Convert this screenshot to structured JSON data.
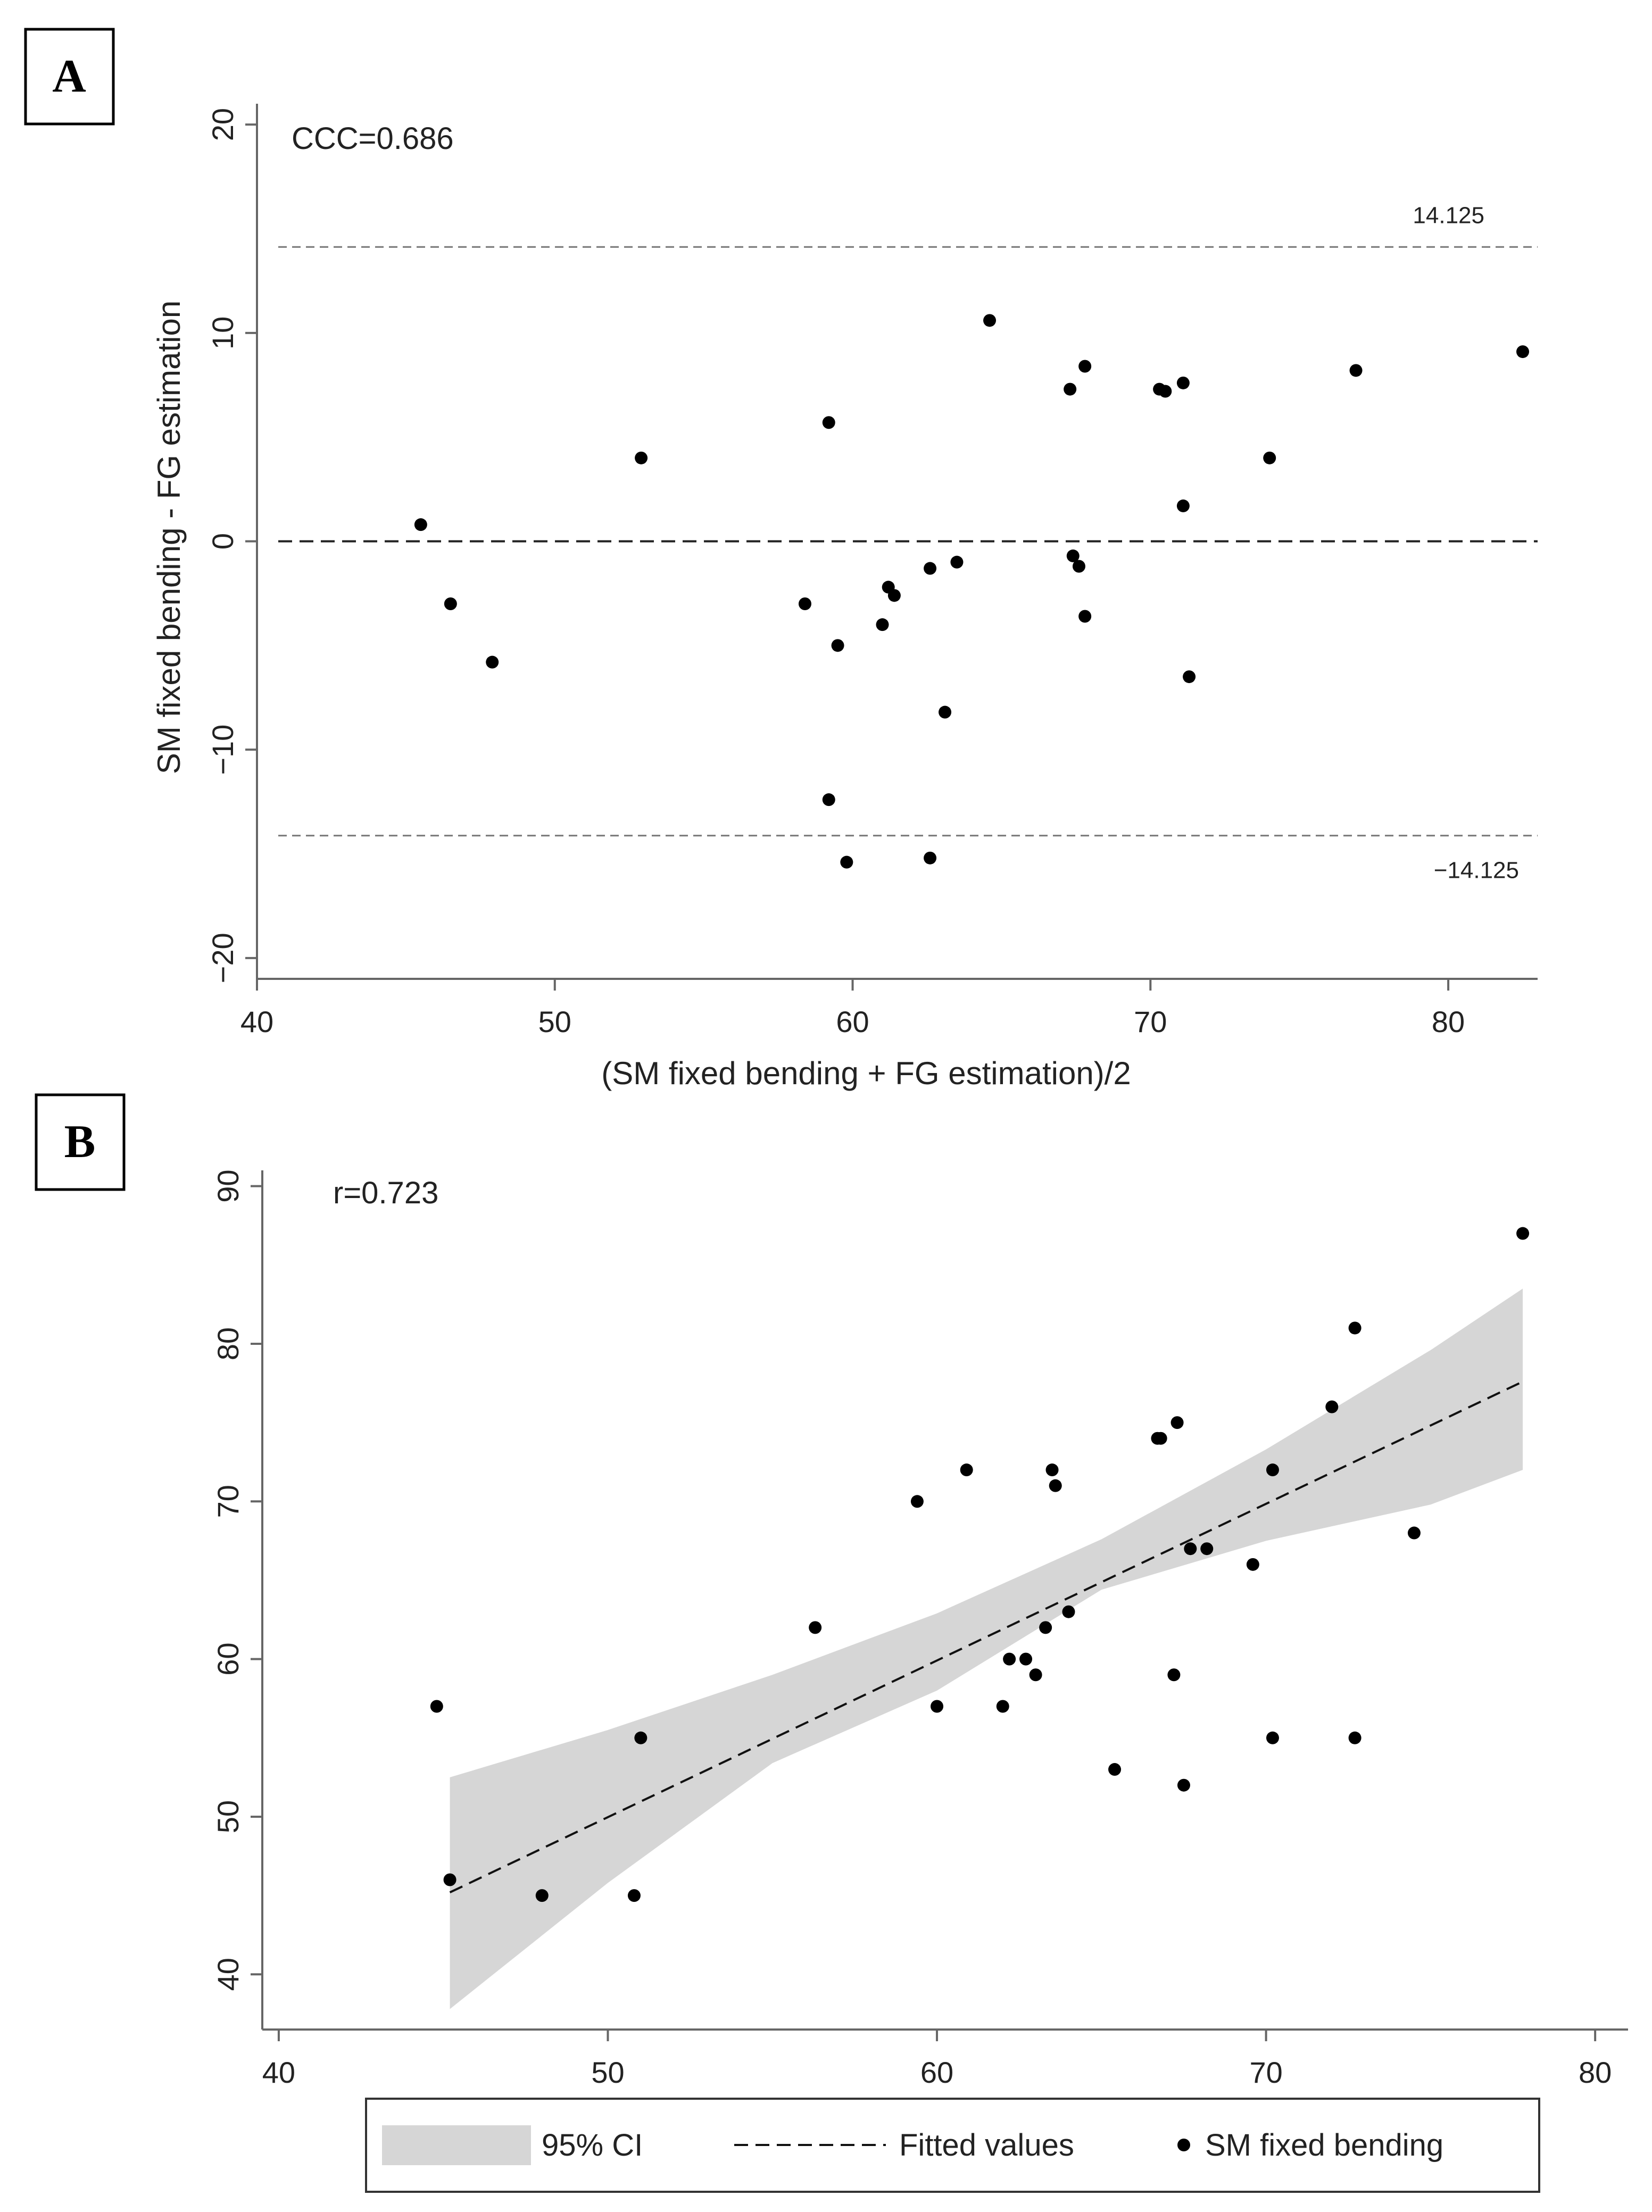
{
  "chart_data": [
    {
      "type": "scatter",
      "panel_label": "A",
      "title": "",
      "annotation": "CCC=0.686",
      "xlabel": "(SM fixed bending + FG estimation)/2",
      "ylabel": "SM fixed bending - FG estimation",
      "xlim": [
        40,
        83
      ],
      "ylim": [
        -21,
        21
      ],
      "x_ticks": [
        40,
        50,
        60,
        70,
        80
      ],
      "y_ticks": [
        20,
        10,
        0,
        -10,
        -20
      ],
      "y_tick_labels": [
        "20",
        "10",
        "0",
        "−10",
        "−20"
      ],
      "grid": false,
      "reference_lines": [
        {
          "name": "upper-limit",
          "y": 14.125,
          "label": "14.125",
          "style": "dashed-thin"
        },
        {
          "name": "mean-difference",
          "y": 0,
          "label": "",
          "style": "dashed"
        },
        {
          "name": "lower-limit",
          "y": -14.125,
          "label": "−14.125",
          "style": "dashed-thin"
        }
      ],
      "series": [
        {
          "name": "differences",
          "points": [
            [
              45.5,
              0.8
            ],
            [
              46.5,
              -3.0
            ],
            [
              47.9,
              -5.8
            ],
            [
              52.9,
              4.0
            ],
            [
              58.4,
              -3.0
            ],
            [
              59.2,
              5.7
            ],
            [
              59.2,
              -12.4
            ],
            [
              59.5,
              -5.0
            ],
            [
              59.8,
              -15.4
            ],
            [
              61.0,
              -4.0
            ],
            [
              61.2,
              -2.2
            ],
            [
              61.4,
              -2.6
            ],
            [
              62.6,
              -1.3
            ],
            [
              62.6,
              -15.2
            ],
            [
              63.1,
              -8.2
            ],
            [
              63.5,
              -1.0
            ],
            [
              64.6,
              10.6
            ],
            [
              67.3,
              7.3
            ],
            [
              67.4,
              -0.7
            ],
            [
              67.6,
              -1.2
            ],
            [
              67.8,
              8.4
            ],
            [
              67.8,
              -3.6
            ],
            [
              70.3,
              7.3
            ],
            [
              70.5,
              7.2
            ],
            [
              71.1,
              7.6
            ],
            [
              71.1,
              1.7
            ],
            [
              71.3,
              -6.5
            ],
            [
              74.0,
              4.0
            ],
            [
              76.9,
              8.2
            ],
            [
              82.5,
              9.1
            ]
          ]
        }
      ]
    },
    {
      "type": "scatter",
      "panel_label": "B",
      "title": "",
      "annotation": "r=0.723",
      "xlabel": "",
      "ylabel": "",
      "xlim": [
        39.5,
        81
      ],
      "ylim": [
        36.5,
        91
      ],
      "x_ticks": [
        40,
        50,
        60,
        70,
        80
      ],
      "y_ticks": [
        90,
        80,
        70,
        60,
        50,
        40
      ],
      "grid": false,
      "legend": {
        "position": "bottom",
        "entries": [
          "95% CI",
          "Fitted values",
          "SM fixed bending"
        ]
      },
      "series": [
        {
          "name": "95% CI",
          "type": "area",
          "x": [
            45.2,
            50,
            55,
            60,
            65,
            70,
            75,
            77.8
          ],
          "upper": [
            52.5,
            55.5,
            59.0,
            62.9,
            67.6,
            73.3,
            79.6,
            83.5
          ],
          "lower": [
            37.8,
            45.8,
            53.4,
            58.0,
            64.4,
            67.5,
            69.8,
            72.0
          ]
        },
        {
          "name": "Fitted values",
          "type": "line",
          "x": [
            45.2,
            77.8
          ],
          "y": [
            45.2,
            77.6
          ]
        },
        {
          "name": "SM fixed bending",
          "type": "scatter",
          "points": [
            [
              44.8,
              57
            ],
            [
              45.2,
              46
            ],
            [
              48.0,
              45
            ],
            [
              50.8,
              45
            ],
            [
              51.0,
              55
            ],
            [
              56.3,
              62
            ],
            [
              59.4,
              70
            ],
            [
              60.0,
              57
            ],
            [
              60.9,
              72
            ],
            [
              62.0,
              57
            ],
            [
              62.2,
              60
            ],
            [
              62.7,
              60
            ],
            [
              63.0,
              59
            ],
            [
              63.3,
              62
            ],
            [
              63.5,
              72
            ],
            [
              63.6,
              71
            ],
            [
              64.0,
              63
            ],
            [
              65.4,
              53
            ],
            [
              66.7,
              74
            ],
            [
              66.8,
              74
            ],
            [
              67.2,
              59
            ],
            [
              67.3,
              75
            ],
            [
              67.5,
              52
            ],
            [
              67.7,
              67
            ],
            [
              68.2,
              67
            ],
            [
              69.6,
              66
            ],
            [
              70.2,
              72
            ],
            [
              70.2,
              55
            ],
            [
              72.0,
              76
            ],
            [
              72.7,
              81
            ],
            [
              72.7,
              55
            ],
            [
              74.5,
              68
            ],
            [
              77.8,
              87
            ]
          ]
        }
      ]
    }
  ]
}
